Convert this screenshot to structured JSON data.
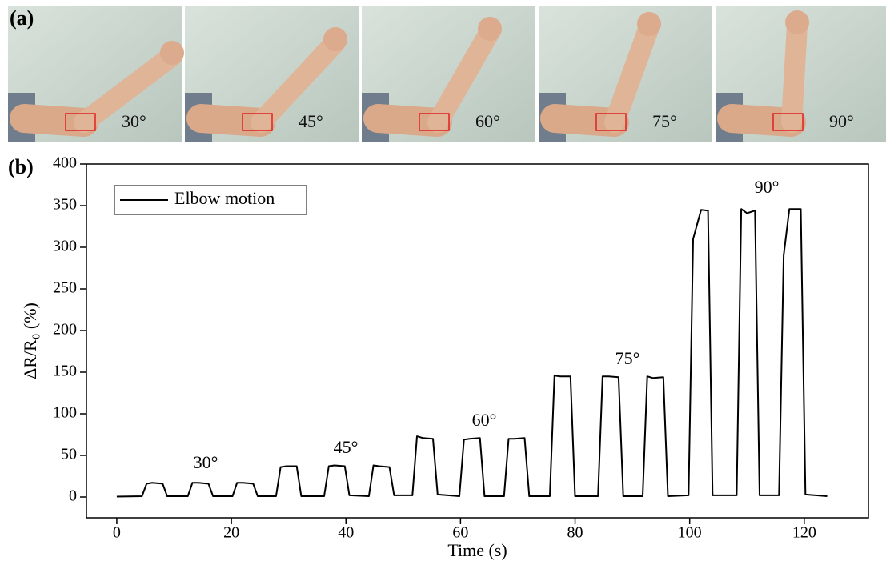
{
  "panel_a": {
    "label": "(a)",
    "angles": [
      "30°",
      "45°",
      "60°",
      "75°",
      "90°"
    ]
  },
  "panel_b_label": "(b)",
  "chart_data": {
    "type": "line",
    "x_label": "Time (s)",
    "y_label": "ΔR/R₀ (%)",
    "x": [
      0,
      4.4,
      5.2,
      6.2,
      8.0,
      8.8,
      12.4,
      13.2,
      14.2,
      16.0,
      16.8,
      20.2,
      21.0,
      22.0,
      23.8,
      24.6,
      27.8,
      28.6,
      29.6,
      31.4,
      32.2,
      36.2,
      37.0,
      38.0,
      39.8,
      40.6,
      44.0,
      44.8,
      45.8,
      47.6,
      48.4,
      51.6,
      52.4,
      53.4,
      55.2,
      56.0,
      59.8,
      60.6,
      61.6,
      63.4,
      64.2,
      67.6,
      68.4,
      69.4,
      71.2,
      72.0,
      75.6,
      76.4,
      77.4,
      79.2,
      80.0,
      84.0,
      84.8,
      85.8,
      87.6,
      88.4,
      91.8,
      92.6,
      93.6,
      95.4,
      96.2,
      99.8,
      100.6,
      102.0,
      103.2,
      104.0,
      108.2,
      109.0,
      110.0,
      111.4,
      112.2,
      115.6,
      116.4,
      117.4,
      119.4,
      120.2,
      124.0
    ],
    "series": [
      {
        "name": "Elbow motion",
        "color": "#000000",
        "values": [
          0.5,
          1,
          16,
          17,
          16,
          1,
          1,
          17,
          17,
          16,
          1,
          1,
          17,
          17,
          16,
          1,
          1,
          36,
          37,
          37,
          1,
          1,
          37,
          38,
          37,
          2,
          1,
          38,
          37,
          36,
          2,
          2,
          73,
          71,
          70,
          3,
          1,
          69,
          70,
          71,
          1,
          1,
          70,
          70,
          71,
          1,
          1,
          146,
          145,
          145,
          1,
          1,
          145,
          145,
          144,
          1,
          1,
          145,
          143,
          144,
          1,
          2,
          310,
          345,
          344,
          2,
          2,
          346,
          341,
          344,
          2,
          2,
          290,
          346,
          346,
          3,
          1
        ]
      }
    ],
    "annotations": [
      "30°",
      "45°",
      "60°",
      "75°",
      "90°"
    ],
    "xlim": [
      -5.3,
      131.2
    ],
    "ylim": [
      -25,
      400
    ],
    "xticks": [
      0,
      20,
      40,
      60,
      80,
      100,
      120
    ],
    "yticks": [
      0,
      50,
      100,
      150,
      200,
      250,
      300,
      350,
      400
    ],
    "legend": "upper-left"
  }
}
